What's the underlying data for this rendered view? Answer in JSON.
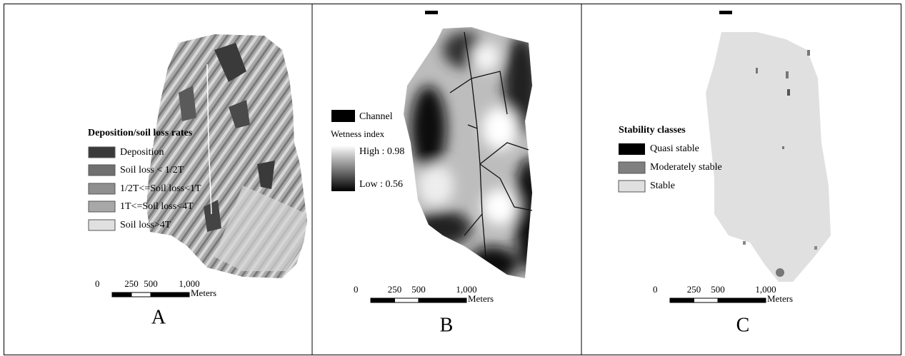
{
  "panels": [
    {
      "label": "A",
      "legend": {
        "title": "Deposition/soil loss rates",
        "items": [
          "Deposition",
          "Soil loss < 1/2T",
          "1/2T<=Soil loss<1T",
          "1T<=Soil loss<4T",
          "Soil loss>4T"
        ]
      },
      "scale_bar": {
        "ticks": [
          "0",
          "250",
          "500",
          "1,000"
        ],
        "unit": "Meters"
      }
    },
    {
      "label": "B",
      "legend": {
        "items": [
          "Channel"
        ],
        "title": "Wetness index",
        "high": "High : 0.98",
        "low": "Low : 0.56"
      },
      "scale_bar": {
        "ticks": [
          "0",
          "250",
          "500",
          "1,000"
        ],
        "unit": "Meters"
      }
    },
    {
      "label": "C",
      "legend": {
        "title": "Stability classes",
        "items": [
          "Quasi stable",
          "Moderately stable",
          "Stable"
        ]
      },
      "scale_bar": {
        "ticks": [
          "0",
          "250",
          "500",
          "1,000"
        ],
        "unit": "Meters"
      }
    }
  ]
}
